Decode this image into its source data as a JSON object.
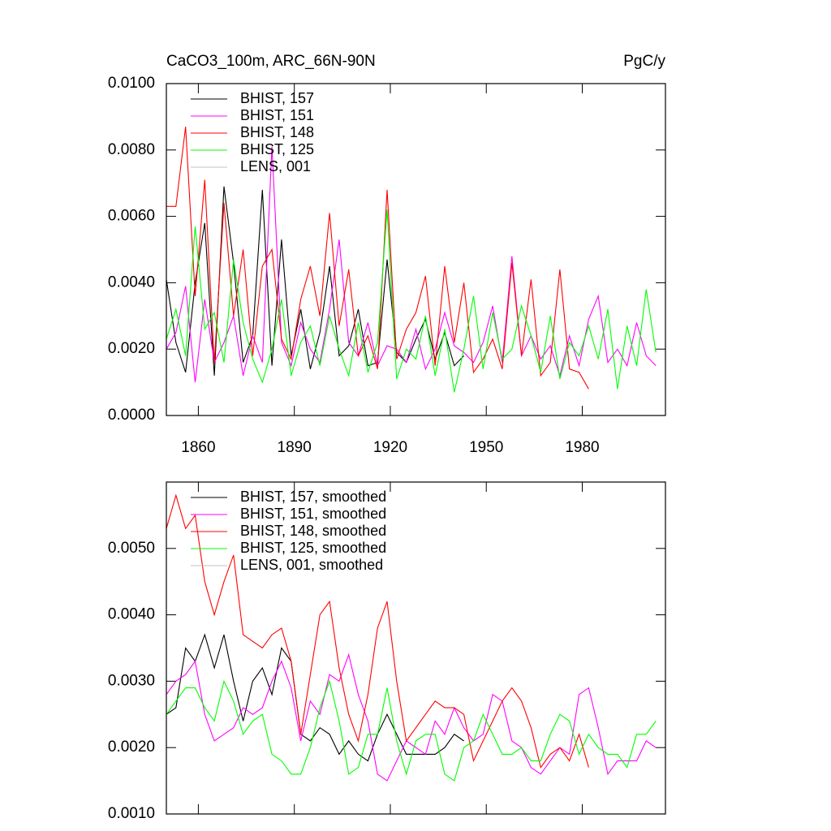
{
  "chart_data": [
    {
      "type": "line",
      "left_title": "CaCO3_100m, ARC_66N-90N",
      "right_title": "PgC/y",
      "x": [
        1850,
        1853,
        1856,
        1859,
        1862,
        1865,
        1868,
        1871,
        1874,
        1877,
        1880,
        1883,
        1886,
        1889,
        1892,
        1895,
        1898,
        1901,
        1904,
        1907,
        1910,
        1913,
        1916,
        1919,
        1922,
        1925,
        1928,
        1931,
        1934,
        1937,
        1940,
        1943,
        1946,
        1949,
        1952,
        1955,
        1958,
        1961,
        1964,
        1967,
        1970,
        1973,
        1976,
        1979,
        1982,
        1985,
        1988,
        1991,
        1994,
        1997,
        2000,
        2003
      ],
      "xlim": [
        1850,
        2006
      ],
      "xticks": [
        1860,
        1890,
        1920,
        1950,
        1980
      ],
      "xtick_labels": true,
      "ylim": [
        0,
        0.01
      ],
      "yticks": [
        {
          "value": 0,
          "label": "0.0000"
        },
        {
          "value": 0.002,
          "label": "0.0020"
        },
        {
          "value": 0.004,
          "label": "0.0040"
        },
        {
          "value": 0.006,
          "label": "0.0060"
        },
        {
          "value": 0.008,
          "label": "0.0080"
        },
        {
          "value": 0.01,
          "label": "0.0100"
        }
      ],
      "legend": "upper left",
      "series": [
        {
          "name": "BHIST, 157",
          "color": "#000000",
          "values": [
            0.0041,
            0.0022,
            0.0013,
            0.004,
            0.0058,
            0.0012,
            0.0069,
            0.0046,
            0.0016,
            0.0024,
            0.0068,
            0.0015,
            0.0053,
            0.0018,
            0.0032,
            0.0014,
            0.0025,
            0.0045,
            0.0018,
            0.0021,
            0.0032,
            0.0015,
            0.0016,
            0.0047,
            0.0019,
            0.0016,
            0.0023,
            0.0029,
            0.0017,
            0.0025,
            0.0015,
            0.0018,
            null,
            null,
            null,
            null,
            null,
            null,
            null,
            null,
            null,
            null,
            null,
            null,
            null,
            null,
            null,
            null,
            null,
            null,
            null,
            null
          ]
        },
        {
          "name": "BHIST, 151",
          "color": "#ff00ff",
          "values": [
            0.002,
            0.0025,
            0.0039,
            0.001,
            0.0035,
            0.0016,
            0.0022,
            0.003,
            0.0012,
            0.0024,
            0.0016,
            0.0081,
            0.0022,
            0.0015,
            0.0028,
            0.002,
            0.0016,
            0.0032,
            0.0053,
            0.0022,
            0.0018,
            0.0028,
            0.0015,
            0.0021,
            0.002,
            0.0016,
            0.0026,
            0.0014,
            0.002,
            0.0031,
            0.0021,
            0.0019,
            0.0016,
            0.0022,
            0.0033,
            0.0016,
            0.0048,
            0.0018,
            0.0024,
            0.0017,
            0.0021,
            0.0012,
            0.0024,
            0.0015,
            0.0029,
            0.0036,
            0.0016,
            0.002,
            0.0015,
            0.0028,
            0.0018,
            0.0015
          ]
        },
        {
          "name": "BHIST, 148",
          "color": "#ff0000",
          "values": [
            0.0063,
            0.0063,
            0.0087,
            0.0036,
            0.0071,
            0.0016,
            0.0064,
            0.003,
            0.005,
            0.0018,
            0.0045,
            0.005,
            0.0023,
            0.0017,
            0.0035,
            0.0045,
            0.003,
            0.0061,
            0.0027,
            0.0044,
            0.0018,
            0.0024,
            0.0014,
            0.0068,
            0.0017,
            0.0026,
            0.0031,
            0.0042,
            0.0015,
            0.0045,
            0.0022,
            0.004,
            0.0013,
            0.0017,
            0.0023,
            0.0014,
            0.0046,
            0.0018,
            0.0041,
            0.0012,
            0.0016,
            0.0044,
            0.0014,
            0.0013,
            0.0008,
            null,
            null,
            null,
            null,
            null,
            null,
            null
          ]
        },
        {
          "name": "BHIST, 125",
          "color": "#00ff00",
          "values": [
            0.0023,
            0.0032,
            0.0018,
            0.0057,
            0.0026,
            0.0031,
            0.0016,
            0.0047,
            0.0028,
            0.0017,
            0.001,
            0.002,
            0.0035,
            0.0012,
            0.0022,
            0.0027,
            0.0015,
            0.003,
            0.002,
            0.0012,
            0.0028,
            0.0013,
            0.0022,
            0.0062,
            0.0011,
            0.002,
            0.0017,
            0.003,
            0.0012,
            0.0026,
            0.0007,
            0.002,
            0.0036,
            0.0014,
            0.0031,
            0.0017,
            0.002,
            0.0033,
            0.0024,
            0.0013,
            0.003,
            0.0011,
            0.0022,
            0.0018,
            0.0027,
            0.0017,
            0.0032,
            0.0008,
            0.0027,
            0.0015,
            0.0038,
            0.0019
          ]
        },
        {
          "name": "LENS, 001",
          "color": "#c0c0c0",
          "values": [
            null,
            null,
            null,
            null,
            null,
            null,
            null,
            null,
            null,
            null,
            null,
            null,
            null,
            null,
            null,
            null,
            null,
            null,
            null,
            null,
            null,
            null,
            null,
            null,
            null,
            null,
            null,
            null,
            null,
            null,
            null,
            null,
            null,
            null,
            null,
            null,
            null,
            null,
            null,
            null,
            null,
            null,
            null,
            null,
            null,
            null,
            null,
            null,
            null,
            null,
            null,
            null
          ]
        }
      ]
    },
    {
      "type": "line",
      "x": [
        1850,
        1853,
        1856,
        1859,
        1862,
        1865,
        1868,
        1871,
        1874,
        1877,
        1880,
        1883,
        1886,
        1889,
        1892,
        1895,
        1898,
        1901,
        1904,
        1907,
        1910,
        1913,
        1916,
        1919,
        1922,
        1925,
        1928,
        1931,
        1934,
        1937,
        1940,
        1943,
        1946,
        1949,
        1952,
        1955,
        1958,
        1961,
        1964,
        1967,
        1970,
        1973,
        1976,
        1979,
        1982,
        1985,
        1988,
        1991,
        1994,
        1997,
        2000,
        2003
      ],
      "xlim": [
        1850,
        2006
      ],
      "xticks": [
        1860,
        1890,
        1920,
        1950,
        1980
      ],
      "xtick_labels": false,
      "ylim": [
        0.001,
        0.006
      ],
      "yticks": [
        {
          "value": 0.001,
          "label": "0.0010"
        },
        {
          "value": 0.002,
          "label": "0.0020"
        },
        {
          "value": 0.003,
          "label": "0.0030"
        },
        {
          "value": 0.004,
          "label": "0.0040"
        },
        {
          "value": 0.005,
          "label": "0.0050"
        }
      ],
      "legend": "upper left",
      "series": [
        {
          "name": "BHIST, 157, smoothed",
          "color": "#000000",
          "values": [
            0.0025,
            0.0026,
            0.0035,
            0.0033,
            0.0037,
            0.0032,
            0.0037,
            0.003,
            0.0024,
            0.003,
            0.0032,
            0.0028,
            0.0035,
            0.0033,
            0.0022,
            0.0021,
            0.0023,
            0.0022,
            0.0019,
            0.0021,
            0.0019,
            0.0018,
            0.0022,
            0.0025,
            0.0022,
            0.0019,
            0.0019,
            0.0019,
            0.0019,
            0.002,
            0.0022,
            0.0021,
            null,
            null,
            null,
            null,
            null,
            null,
            null,
            null,
            null,
            null,
            null,
            null,
            null,
            null,
            null,
            null,
            null,
            null,
            null,
            null
          ]
        },
        {
          "name": "BHIST, 151, smoothed",
          "color": "#ff00ff",
          "values": [
            0.0028,
            0.003,
            0.0031,
            0.0033,
            0.0025,
            0.0021,
            0.0022,
            0.0023,
            0.0026,
            0.0025,
            0.0026,
            0.003,
            0.0033,
            0.0029,
            0.0021,
            0.0027,
            0.0025,
            0.0031,
            0.003,
            0.0034,
            0.0028,
            0.0024,
            0.0016,
            0.0015,
            0.0018,
            0.0021,
            0.002,
            0.0019,
            0.0024,
            0.0022,
            0.0026,
            0.0023,
            0.0021,
            0.0022,
            0.0028,
            0.0027,
            0.0021,
            0.002,
            0.0017,
            0.0016,
            0.0018,
            0.002,
            0.0019,
            0.0028,
            0.0029,
            0.0023,
            0.0016,
            0.0018,
            0.0018,
            0.0018,
            0.0021,
            0.002
          ]
        },
        {
          "name": "BHIST, 148, smoothed",
          "color": "#ff0000",
          "values": [
            0.0053,
            0.0058,
            0.0053,
            0.0055,
            0.0045,
            0.004,
            0.0045,
            0.0049,
            0.0037,
            0.0036,
            0.0035,
            0.0037,
            0.0038,
            0.0033,
            0.0022,
            0.0031,
            0.004,
            0.0042,
            0.0032,
            0.0025,
            0.0021,
            0.0028,
            0.0038,
            0.0042,
            0.003,
            0.0021,
            0.0023,
            0.0025,
            0.0027,
            0.0026,
            0.0026,
            0.0025,
            0.0018,
            0.0021,
            0.0024,
            0.0027,
            0.0029,
            0.0027,
            0.0023,
            0.0017,
            0.0019,
            0.002,
            0.0018,
            0.0022,
            0.0017,
            null,
            null,
            null,
            null,
            null,
            null,
            null
          ]
        },
        {
          "name": "BHIST, 125, smoothed",
          "color": "#00ff00",
          "values": [
            0.0025,
            0.0027,
            0.0029,
            0.0029,
            0.0026,
            0.0024,
            0.003,
            0.0027,
            0.0022,
            0.0024,
            0.0025,
            0.0019,
            0.0018,
            0.0016,
            0.0016,
            0.002,
            0.0026,
            0.003,
            0.0024,
            0.0016,
            0.0017,
            0.0022,
            0.0022,
            0.0029,
            0.0021,
            0.0016,
            0.0021,
            0.0022,
            0.0022,
            0.0016,
            0.0015,
            0.002,
            0.0021,
            0.0025,
            0.0022,
            0.0019,
            0.0019,
            0.002,
            0.0018,
            0.0018,
            0.0022,
            0.0025,
            0.0024,
            0.0019,
            0.0022,
            0.002,
            0.0019,
            0.0019,
            0.0017,
            0.0022,
            0.0022,
            0.0024
          ]
        },
        {
          "name": "LENS, 001, smoothed",
          "color": "#c0c0c0",
          "values": [
            null,
            null,
            null,
            null,
            null,
            null,
            null,
            null,
            null,
            null,
            null,
            null,
            null,
            null,
            null,
            null,
            null,
            null,
            null,
            null,
            null,
            null,
            null,
            null,
            null,
            null,
            null,
            null,
            null,
            null,
            null,
            null,
            null,
            null,
            null,
            null,
            null,
            null,
            null,
            null,
            null,
            null,
            null,
            null,
            null,
            null,
            null,
            null,
            null,
            null,
            null,
            null
          ]
        }
      ]
    }
  ]
}
